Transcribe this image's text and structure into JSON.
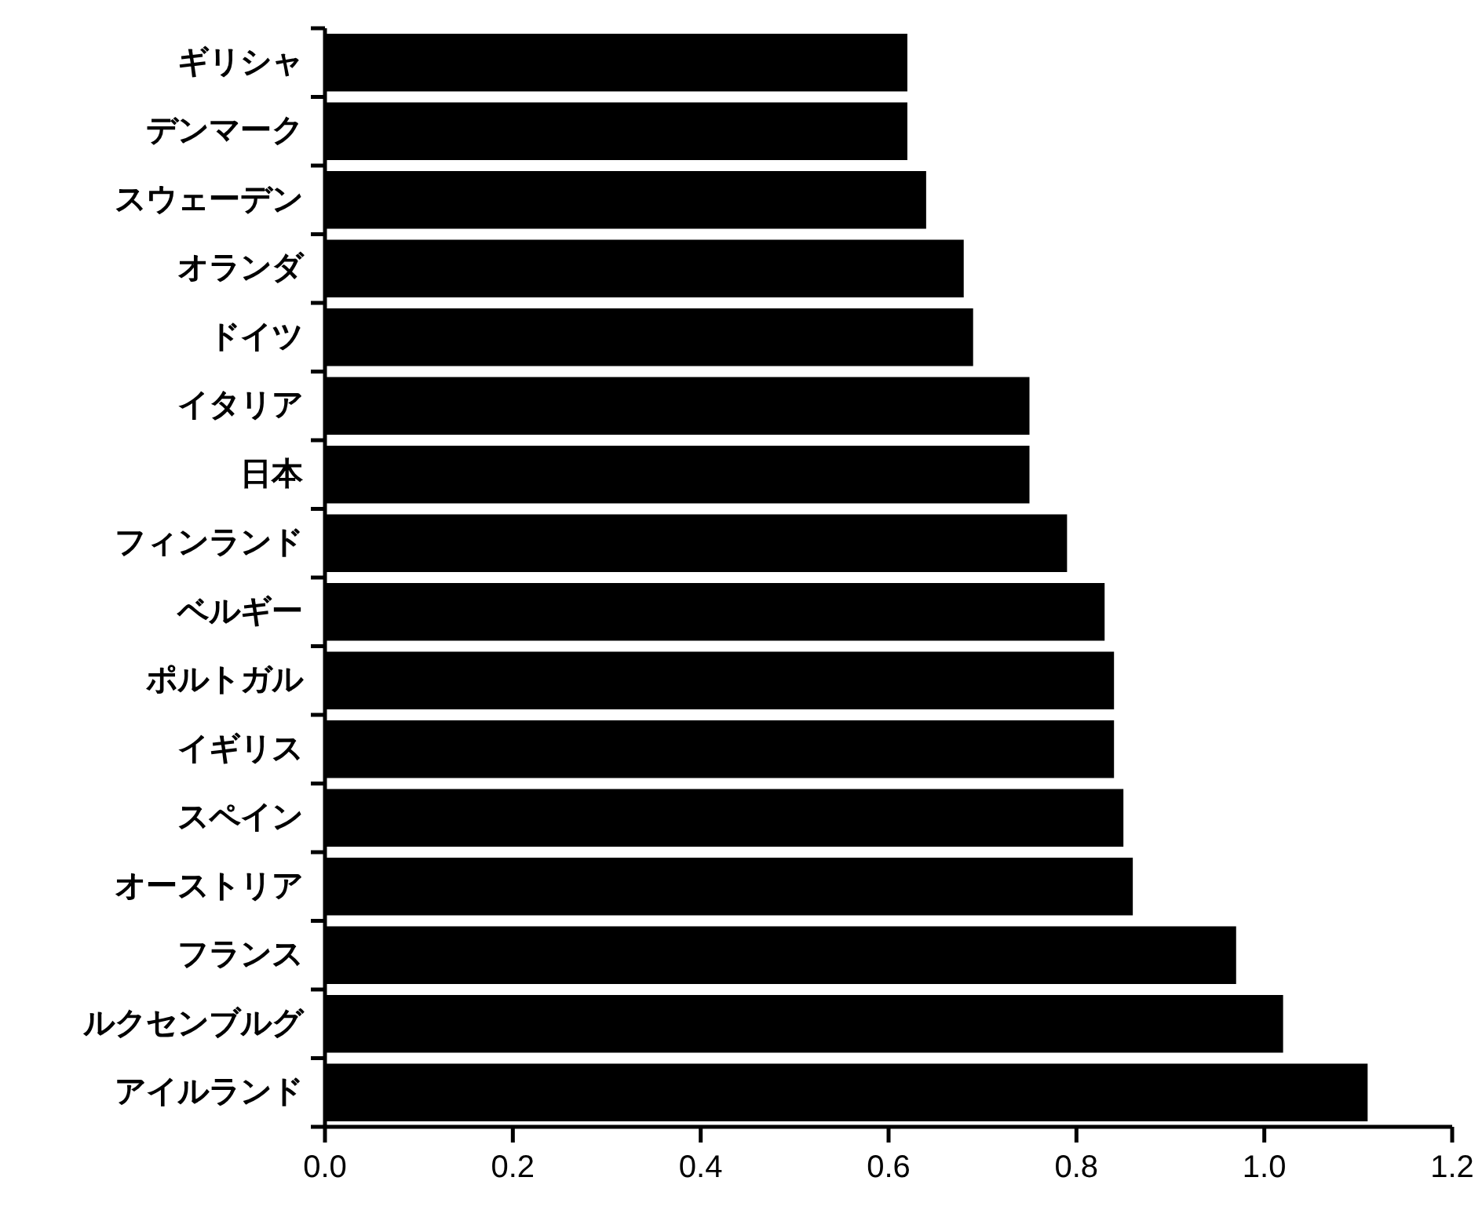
{
  "chart_data": {
    "type": "bar",
    "orientation": "horizontal",
    "categories": [
      "ギリシャ",
      "デンマーク",
      "スウェーデン",
      "オランダ",
      "ドイツ",
      "イタリア",
      "日本",
      "フィンランド",
      "ベルギー",
      "ポルトガル",
      "イギリス",
      "スペイン",
      "オーストリア",
      "フランス",
      "ルクセンブルグ",
      "アイルランド"
    ],
    "values": [
      0.62,
      0.62,
      0.64,
      0.68,
      0.69,
      0.75,
      0.75,
      0.79,
      0.83,
      0.84,
      0.84,
      0.85,
      0.86,
      0.97,
      1.02,
      1.11
    ],
    "color": "#000000",
    "xlim": [
      0,
      1.2
    ],
    "xticks": [
      {
        "value": 0,
        "label": "0.0"
      },
      0.2,
      0.4,
      0.6,
      0.8,
      {
        "value": 1,
        "label": "1.0"
      },
      1.2
    ],
    "grid": false
  }
}
